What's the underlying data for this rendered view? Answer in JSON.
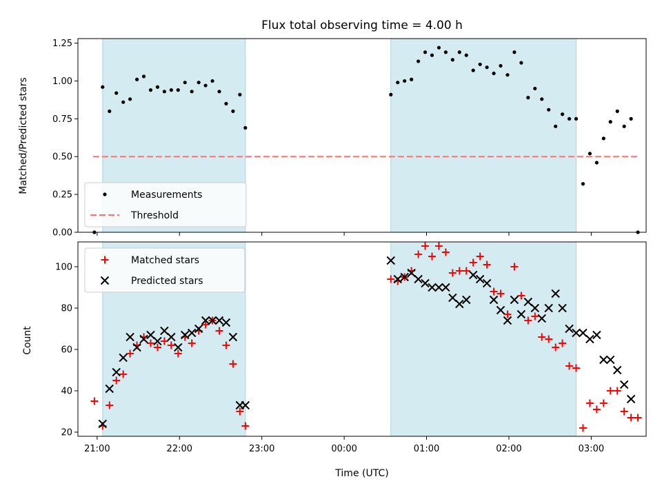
{
  "chart_data": [
    {
      "type": "scatter",
      "title": "Flux total observing time = 4.00 h",
      "xlabel": "",
      "ylabel": "Matched/Predicted stars",
      "ylim": [
        0,
        1.28
      ],
      "yticks": [
        "0.00",
        "0.25",
        "0.50",
        "0.75",
        "1.00",
        "1.25"
      ],
      "ytick_values": [
        0,
        0.25,
        0.5,
        0.75,
        1.0,
        1.25
      ],
      "threshold": {
        "name": "Threshold",
        "value": 0.5,
        "x_start": "20:57",
        "x_end": "03:34",
        "color": "#ff6f6f"
      },
      "shaded_regions": [
        {
          "start": "21:04",
          "end": "22:48",
          "color": "#d4ebf1"
        },
        {
          "start": "00:34",
          "end": "02:49",
          "color": "#d4ebf1"
        }
      ],
      "series": [
        {
          "name": "Measurements",
          "color": "#000000",
          "marker": "dot",
          "points": [
            [
              "20:58",
              0.0
            ],
            [
              "21:04",
              0.96
            ],
            [
              "21:09",
              0.8
            ],
            [
              "21:14",
              0.92
            ],
            [
              "21:19",
              0.86
            ],
            [
              "21:24",
              0.88
            ],
            [
              "21:29",
              1.01
            ],
            [
              "21:34",
              1.03
            ],
            [
              "21:39",
              0.94
            ],
            [
              "21:44",
              0.96
            ],
            [
              "21:49",
              0.93
            ],
            [
              "21:54",
              0.94
            ],
            [
              "21:59",
              0.94
            ],
            [
              "22:04",
              0.99
            ],
            [
              "22:09",
              0.93
            ],
            [
              "22:14",
              0.99
            ],
            [
              "22:19",
              0.97
            ],
            [
              "22:24",
              1.0
            ],
            [
              "22:29",
              0.93
            ],
            [
              "22:34",
              0.85
            ],
            [
              "22:39",
              0.8
            ],
            [
              "22:44",
              0.91
            ],
            [
              "22:48",
              0.69
            ],
            [
              "00:34",
              0.91
            ],
            [
              "00:39",
              0.99
            ],
            [
              "00:44",
              1.0
            ],
            [
              "00:49",
              1.01
            ],
            [
              "00:54",
              1.13
            ],
            [
              "00:59",
              1.19
            ],
            [
              "01:04",
              1.17
            ],
            [
              "01:09",
              1.22
            ],
            [
              "01:14",
              1.19
            ],
            [
              "01:19",
              1.14
            ],
            [
              "01:24",
              1.19
            ],
            [
              "01:29",
              1.17
            ],
            [
              "01:34",
              1.07
            ],
            [
              "01:39",
              1.11
            ],
            [
              "01:44",
              1.09
            ],
            [
              "01:49",
              1.05
            ],
            [
              "01:54",
              1.1
            ],
            [
              "01:59",
              1.04
            ],
            [
              "02:04",
              1.19
            ],
            [
              "02:09",
              1.12
            ],
            [
              "02:14",
              0.89
            ],
            [
              "02:19",
              0.95
            ],
            [
              "02:24",
              0.88
            ],
            [
              "02:29",
              0.81
            ],
            [
              "02:34",
              0.7
            ],
            [
              "02:39",
              0.78
            ],
            [
              "02:44",
              0.75
            ],
            [
              "02:49",
              0.75
            ],
            [
              "02:54",
              0.32
            ],
            [
              "02:59",
              0.52
            ],
            [
              "03:04",
              0.46
            ],
            [
              "03:09",
              0.62
            ],
            [
              "03:14",
              0.73
            ],
            [
              "03:19",
              0.8
            ],
            [
              "03:24",
              0.7
            ],
            [
              "03:29",
              0.75
            ],
            [
              "03:34",
              0.0
            ]
          ]
        }
      ],
      "legend": {
        "placement": "lower-left",
        "entries": [
          "Measurements",
          "Threshold"
        ]
      }
    },
    {
      "type": "scatter",
      "title": "",
      "xlabel": "Time (UTC)",
      "ylabel": "Count",
      "ylim": [
        18,
        112
      ],
      "yticks": [
        "20",
        "40",
        "60",
        "80",
        "100"
      ],
      "ytick_values": [
        20,
        40,
        60,
        80,
        100
      ],
      "xticks": [
        "21:00",
        "22:00",
        "23:00",
        "00:00",
        "01:00",
        "02:00",
        "03:00"
      ],
      "shaded_regions": [
        {
          "start": "21:04",
          "end": "22:48",
          "color": "#d4ebf1"
        },
        {
          "start": "00:34",
          "end": "02:49",
          "color": "#d4ebf1"
        }
      ],
      "series": [
        {
          "name": "Matched stars",
          "color": "#ff0000",
          "marker": "plus",
          "points": [
            [
              "20:58",
              35
            ],
            [
              "21:04",
              23
            ],
            [
              "21:09",
              33
            ],
            [
              "21:14",
              45
            ],
            [
              "21:19",
              48
            ],
            [
              "21:24",
              58
            ],
            [
              "21:29",
              62
            ],
            [
              "21:34",
              66
            ],
            [
              "21:39",
              63
            ],
            [
              "21:44",
              61
            ],
            [
              "21:49",
              64
            ],
            [
              "21:54",
              62
            ],
            [
              "21:59",
              58
            ],
            [
              "22:04",
              66
            ],
            [
              "22:09",
              63
            ],
            [
              "22:14",
              69
            ],
            [
              "22:19",
              72
            ],
            [
              "22:24",
              74
            ],
            [
              "22:29",
              69
            ],
            [
              "22:34",
              62
            ],
            [
              "22:39",
              53
            ],
            [
              "22:44",
              30
            ],
            [
              "22:48",
              23
            ],
            [
              "00:34",
              94
            ],
            [
              "00:39",
              93
            ],
            [
              "00:44",
              95
            ],
            [
              "00:49",
              98
            ],
            [
              "00:54",
              106
            ],
            [
              "00:59",
              110
            ],
            [
              "01:04",
              105
            ],
            [
              "01:09",
              110
            ],
            [
              "01:14",
              107
            ],
            [
              "01:19",
              97
            ],
            [
              "01:24",
              98
            ],
            [
              "01:29",
              98
            ],
            [
              "01:34",
              102
            ],
            [
              "01:39",
              105
            ],
            [
              "01:44",
              101
            ],
            [
              "01:49",
              88
            ],
            [
              "01:54",
              87
            ],
            [
              "01:59",
              77
            ],
            [
              "02:04",
              100
            ],
            [
              "02:09",
              86
            ],
            [
              "02:14",
              74
            ],
            [
              "02:19",
              76
            ],
            [
              "02:24",
              66
            ],
            [
              "02:29",
              65
            ],
            [
              "02:34",
              61
            ],
            [
              "02:39",
              63
            ],
            [
              "02:44",
              52
            ],
            [
              "02:49",
              51
            ],
            [
              "02:54",
              22
            ],
            [
              "02:59",
              34
            ],
            [
              "03:04",
              31
            ],
            [
              "03:09",
              34
            ],
            [
              "03:14",
              40
            ],
            [
              "03:19",
              40
            ],
            [
              "03:24",
              30
            ],
            [
              "03:29",
              27
            ],
            [
              "03:34",
              27
            ]
          ]
        },
        {
          "name": "Predicted stars",
          "color": "#000000",
          "marker": "x",
          "points": [
            [
              "21:04",
              24
            ],
            [
              "21:09",
              41
            ],
            [
              "21:14",
              49
            ],
            [
              "21:19",
              56
            ],
            [
              "21:24",
              66
            ],
            [
              "21:29",
              61
            ],
            [
              "21:34",
              65
            ],
            [
              "21:39",
              67
            ],
            [
              "21:44",
              64
            ],
            [
              "21:49",
              69
            ],
            [
              "21:54",
              66
            ],
            [
              "21:59",
              61
            ],
            [
              "22:04",
              67
            ],
            [
              "22:09",
              68
            ],
            [
              "22:14",
              70
            ],
            [
              "22:19",
              74
            ],
            [
              "22:24",
              74
            ],
            [
              "22:29",
              74
            ],
            [
              "22:34",
              73
            ],
            [
              "22:39",
              66
            ],
            [
              "22:44",
              33
            ],
            [
              "22:48",
              33
            ],
            [
              "00:34",
              103
            ],
            [
              "00:39",
              94
            ],
            [
              "00:44",
              95
            ],
            [
              "00:49",
              97
            ],
            [
              "00:54",
              94
            ],
            [
              "00:59",
              92
            ],
            [
              "01:04",
              90
            ],
            [
              "01:09",
              90
            ],
            [
              "01:14",
              90
            ],
            [
              "01:19",
              85
            ],
            [
              "01:24",
              82
            ],
            [
              "01:29",
              84
            ],
            [
              "01:34",
              96
            ],
            [
              "01:39",
              94
            ],
            [
              "01:44",
              92
            ],
            [
              "01:49",
              84
            ],
            [
              "01:54",
              79
            ],
            [
              "01:59",
              74
            ],
            [
              "02:04",
              84
            ],
            [
              "02:09",
              77
            ],
            [
              "02:14",
              83
            ],
            [
              "02:19",
              80
            ],
            [
              "02:24",
              75
            ],
            [
              "02:29",
              80
            ],
            [
              "02:34",
              87
            ],
            [
              "02:39",
              80
            ],
            [
              "02:44",
              70
            ],
            [
              "02:49",
              68
            ],
            [
              "02:54",
              68
            ],
            [
              "02:59",
              65
            ],
            [
              "03:04",
              67
            ],
            [
              "03:09",
              55
            ],
            [
              "03:14",
              55
            ],
            [
              "03:19",
              50
            ],
            [
              "03:24",
              43
            ],
            [
              "03:29",
              36
            ]
          ]
        }
      ],
      "legend": {
        "placement": "upper-left",
        "entries": [
          "Matched stars",
          "Predicted stars"
        ]
      }
    }
  ]
}
